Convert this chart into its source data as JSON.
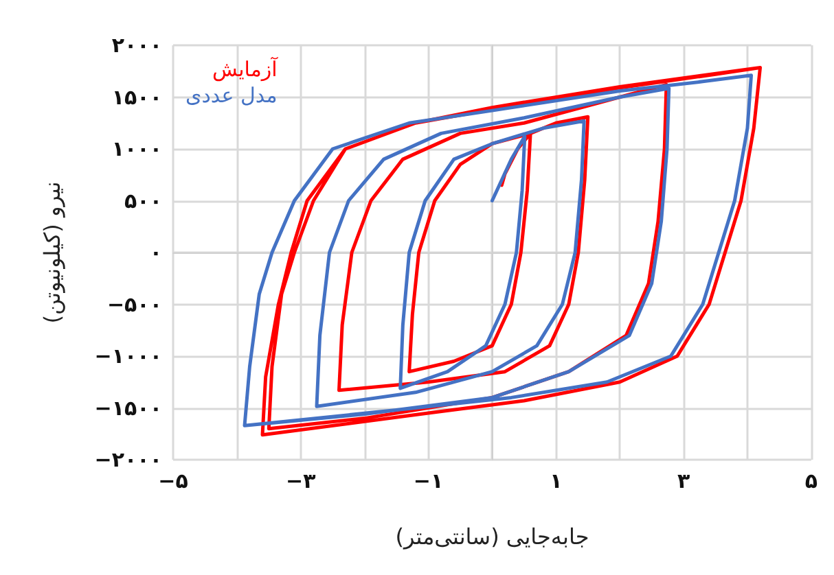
{
  "chart_data": {
    "type": "line",
    "xlabel": "جابه‌جایی (سانتی‌متر)",
    "ylabel": "نیرو (کیلونیوتن)",
    "xlim": [
      -5,
      5
    ],
    "ylim": [
      -2000,
      2000
    ],
    "xticks": [
      {
        "value": -5,
        "label": "−۵"
      },
      {
        "value": -3,
        "label": "−۳"
      },
      {
        "value": -1,
        "label": "−۱"
      },
      {
        "value": 0,
        "label": null
      },
      {
        "value": 1,
        "label": "۱"
      },
      {
        "value": 3,
        "label": "۳"
      },
      {
        "value": 5,
        "label": "۵"
      }
    ],
    "yticks": [
      {
        "value": -2000,
        "label": "−۲۰۰۰"
      },
      {
        "value": -1500,
        "label": "−۱۵۰۰"
      },
      {
        "value": -1000,
        "label": "−۱۰۰۰"
      },
      {
        "value": -500,
        "label": "−۵۰۰"
      },
      {
        "value": 0,
        "label": "۰"
      },
      {
        "value": 500,
        "label": "۵۰۰"
      },
      {
        "value": 1000,
        "label": "۱۰۰۰"
      },
      {
        "value": 1500,
        "label": "۱۵۰۰"
      },
      {
        "value": 2000,
        "label": "۲۰۰۰"
      }
    ],
    "grid": true,
    "legend": "top left",
    "marker": "none",
    "line_style": "solid",
    "series": [
      {
        "name": "آزمایش",
        "color": "#ff0000",
        "x": [
          0.15,
          0.2,
          0.4,
          0.6,
          0.55,
          0.45,
          0.3,
          0,
          -0.6,
          -1.3,
          -1.25,
          -1.15,
          -0.9,
          -0.5,
          0,
          0.6,
          1.0,
          1.5,
          1.45,
          1.35,
          1.2,
          0.9,
          0.2,
          -1,
          -2.4,
          -2.35,
          -2.2,
          -1.9,
          -1.4,
          -0.5,
          0.5,
          2.0,
          2.73,
          2.7,
          2.6,
          2.45,
          2.1,
          1.2,
          0,
          -2,
          -3.5,
          -3.45,
          -3.3,
          -3.1,
          -2.8,
          -2.3,
          -1.2,
          0,
          2,
          3.5,
          4.2,
          4.1,
          3.9,
          3.65,
          3.4,
          2.9,
          2,
          0.5,
          -1,
          -3.6,
          -3.55,
          -3.35,
          -3.15,
          -2.9,
          -2.3,
          -1.2,
          0,
          2,
          4.2
        ],
        "values": [
          650,
          760,
          1000,
          1150,
          600,
          0,
          -500,
          -900,
          -1050,
          -1150,
          -600,
          0,
          500,
          850,
          1050,
          1150,
          1250,
          1310,
          700,
          0,
          -500,
          -900,
          -1150,
          -1250,
          -1330,
          -700,
          0,
          500,
          900,
          1150,
          1250,
          1500,
          1620,
          1000,
          300,
          -300,
          -800,
          -1150,
          -1400,
          -1600,
          -1700,
          -1100,
          -400,
          0,
          500,
          1000,
          1250,
          1380,
          1590,
          1720,
          1785,
          1200,
          500,
          0,
          -500,
          -1000,
          -1250,
          -1430,
          -1550,
          -1760,
          -1200,
          -500,
          0,
          500,
          1000,
          1250,
          1400,
          1600,
          1785
        ]
      },
      {
        "name": "مدل عددی",
        "color": "#4472c4",
        "x": [
          0,
          0.3,
          0.51,
          0.47,
          0.38,
          0.2,
          -0.1,
          -0.7,
          -1.44,
          -1.4,
          -1.3,
          -1.05,
          -0.6,
          0,
          0.8,
          1.44,
          1.4,
          1.3,
          1.1,
          0.7,
          0,
          -1.2,
          -2.75,
          -2.7,
          -2.55,
          -2.25,
          -1.7,
          -0.8,
          0.5,
          2.0,
          2.77,
          2.74,
          2.65,
          2.5,
          2.15,
          1.2,
          0,
          -2,
          -3.88,
          -3.8,
          -3.65,
          -3.45,
          -3.1,
          -2.5,
          -1.3,
          0,
          2,
          3.3,
          4.06,
          4.0,
          3.8,
          3.55,
          3.3,
          2.8,
          1.8,
          0.3,
          -1.5,
          -3.88
        ],
        "values": [
          500,
          900,
          1120,
          600,
          0,
          -500,
          -900,
          -1150,
          -1310,
          -700,
          0,
          500,
          900,
          1050,
          1200,
          1270,
          700,
          0,
          -500,
          -900,
          -1150,
          -1350,
          -1485,
          -800,
          0,
          500,
          900,
          1150,
          1300,
          1500,
          1585,
          1000,
          300,
          -300,
          -800,
          -1150,
          -1400,
          -1560,
          -1670,
          -1100,
          -400,
          0,
          500,
          1000,
          1250,
          1370,
          1560,
          1650,
          1710,
          1200,
          500,
          0,
          -500,
          -1000,
          -1250,
          -1400,
          -1520,
          -1670
        ]
      }
    ]
  }
}
